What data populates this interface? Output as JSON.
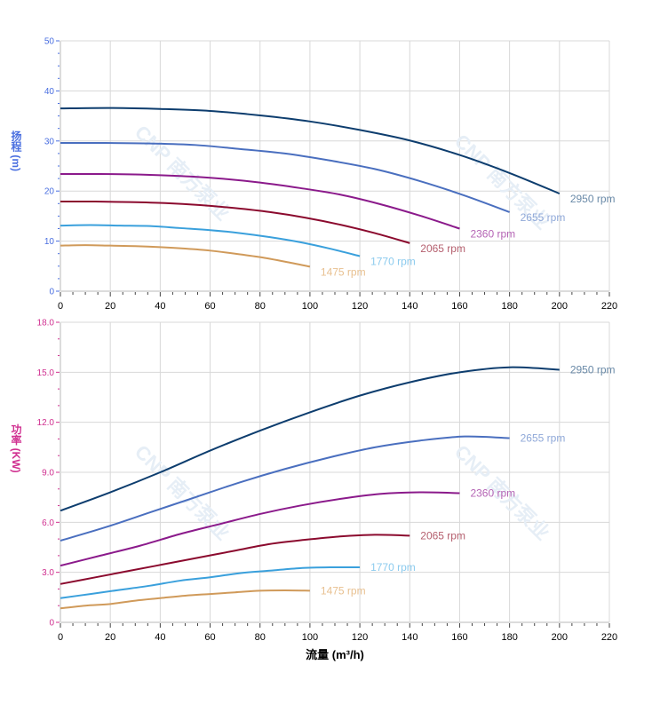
{
  "chart_data": [
    {
      "type": "line",
      "ylabel": "扬程 (m)",
      "xlim": [
        0,
        220
      ],
      "ylim": [
        0,
        50
      ],
      "xticks": [
        0,
        20,
        40,
        60,
        80,
        100,
        120,
        140,
        160,
        180,
        200,
        220
      ],
      "yticks": [
        0,
        10,
        20,
        30,
        40,
        50
      ],
      "ytick_labels": [
        "0",
        "10",
        "20",
        "30",
        "40",
        "50"
      ],
      "grid": true,
      "axis_color": "#4a6fe0",
      "series": [
        {
          "name": "2950 rpm",
          "color": "#0d3d6e",
          "label_color": "#6a8aa8",
          "x": [
            0,
            20,
            40,
            60,
            80,
            100,
            120,
            140,
            160,
            180,
            200
          ],
          "y": [
            36.5,
            36.6,
            36.4,
            36.0,
            35.1,
            33.9,
            32.2,
            30.1,
            27.2,
            23.6,
            19.5
          ]
        },
        {
          "name": "2655 rpm",
          "color": "#4a6fbf",
          "label_color": "#8fa8d8",
          "x": [
            0,
            18,
            36,
            54,
            72,
            90,
            108,
            126,
            144,
            162,
            180
          ],
          "y": [
            29.6,
            29.6,
            29.5,
            29.2,
            28.4,
            27.5,
            26.1,
            24.4,
            22.0,
            19.1,
            15.8
          ]
        },
        {
          "name": "2360 rpm",
          "color": "#8b1a8b",
          "label_color": "#b565b5",
          "x": [
            0,
            16,
            32,
            48,
            64,
            80,
            96,
            112,
            128,
            144,
            160
          ],
          "y": [
            23.4,
            23.4,
            23.3,
            23.0,
            22.5,
            21.7,
            20.6,
            19.3,
            17.4,
            15.1,
            12.5
          ]
        },
        {
          "name": "2065 rpm",
          "color": "#8b0a2e",
          "label_color": "#b5606f",
          "x": [
            0,
            14,
            28,
            42,
            56,
            70,
            84,
            98,
            112,
            126,
            140
          ],
          "y": [
            17.9,
            17.9,
            17.8,
            17.6,
            17.2,
            16.6,
            15.8,
            14.7,
            13.3,
            11.6,
            9.6
          ]
        },
        {
          "name": "1770 rpm",
          "color": "#3aa0dc",
          "label_color": "#8ccbee",
          "x": [
            0,
            12,
            24,
            36,
            48,
            60,
            72,
            84,
            96,
            108,
            120
          ],
          "y": [
            13.1,
            13.2,
            13.1,
            13.0,
            12.6,
            12.2,
            11.6,
            10.8,
            9.8,
            8.5,
            7.0
          ]
        },
        {
          "name": "1475 rpm",
          "color": "#d09a5a",
          "label_color": "#e8c090",
          "x": [
            0,
            10,
            20,
            30,
            40,
            50,
            60,
            70,
            80,
            90,
            100
          ],
          "y": [
            9.1,
            9.2,
            9.1,
            9.0,
            8.8,
            8.5,
            8.1,
            7.5,
            6.8,
            5.9,
            4.9
          ]
        }
      ]
    },
    {
      "type": "line",
      "xlabel": "流量 (m³/h)",
      "ylabel": "功率 (KW)",
      "xlim": [
        0,
        220
      ],
      "ylim": [
        0,
        18
      ],
      "xticks": [
        0,
        20,
        40,
        60,
        80,
        100,
        120,
        140,
        160,
        180,
        200,
        220
      ],
      "yticks": [
        0,
        3,
        6,
        9,
        12,
        15,
        18
      ],
      "ytick_labels": [
        "0",
        "3.0",
        "6.0",
        "9.0",
        "12.0",
        "15.0",
        "18.0"
      ],
      "grid": true,
      "axis_color": "#d03090",
      "series": [
        {
          "name": "2950 rpm",
          "color": "#0d3d6e",
          "label_color": "#6a8aa8",
          "x": [
            0,
            20,
            40,
            60,
            80,
            100,
            120,
            140,
            160,
            180,
            200
          ],
          "y": [
            6.7,
            7.8,
            9.0,
            10.3,
            11.5,
            12.6,
            13.6,
            14.4,
            15.0,
            15.3,
            15.15
          ]
        },
        {
          "name": "2655 rpm",
          "color": "#4a6fbf",
          "label_color": "#8fa8d8",
          "x": [
            0,
            18,
            36,
            54,
            72,
            90,
            108,
            126,
            144,
            162,
            180
          ],
          "y": [
            4.9,
            5.7,
            6.6,
            7.5,
            8.4,
            9.2,
            9.9,
            10.5,
            10.9,
            11.15,
            11.05
          ]
        },
        {
          "name": "2360 rpm",
          "color": "#8b1a8b",
          "label_color": "#b565b5",
          "x": [
            0,
            16,
            32,
            48,
            64,
            80,
            96,
            112,
            128,
            144,
            160
          ],
          "y": [
            3.4,
            4.0,
            4.6,
            5.3,
            5.9,
            6.5,
            7.0,
            7.4,
            7.7,
            7.8,
            7.75
          ]
        },
        {
          "name": "2065 rpm",
          "color": "#8b0a2e",
          "label_color": "#b5606f",
          "x": [
            0,
            14,
            28,
            42,
            56,
            70,
            84,
            98,
            112,
            126,
            140
          ],
          "y": [
            2.3,
            2.7,
            3.1,
            3.5,
            3.9,
            4.3,
            4.7,
            4.95,
            5.15,
            5.25,
            5.2
          ]
        },
        {
          "name": "1770 rpm",
          "color": "#3aa0dc",
          "label_color": "#8ccbee",
          "x": [
            0,
            12,
            24,
            36,
            48,
            60,
            72,
            84,
            96,
            108,
            120
          ],
          "y": [
            1.45,
            1.7,
            1.95,
            2.2,
            2.5,
            2.7,
            2.95,
            3.1,
            3.25,
            3.3,
            3.3
          ]
        },
        {
          "name": "1475 rpm",
          "color": "#d09a5a",
          "label_color": "#e8c090",
          "x": [
            0,
            10,
            20,
            30,
            40,
            50,
            60,
            70,
            80,
            90,
            100
          ],
          "y": [
            0.84,
            1.0,
            1.1,
            1.3,
            1.45,
            1.6,
            1.7,
            1.8,
            1.9,
            1.92,
            1.9
          ]
        }
      ]
    }
  ],
  "watermark": "CNP 南方泵业"
}
